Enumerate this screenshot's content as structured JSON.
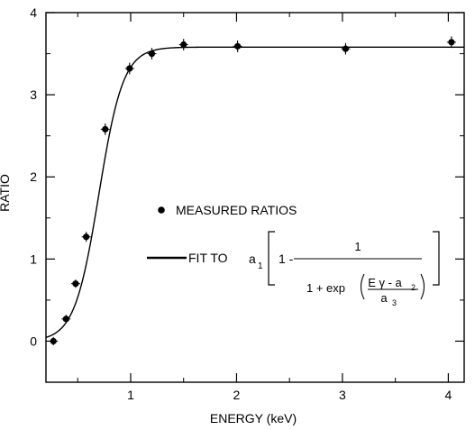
{
  "chart_data": {
    "type": "scatter",
    "xlabel": "ENERGY  (keV)",
    "ylabel": "RATIO",
    "xlim": [
      0.2,
      4.15
    ],
    "ylim": [
      -0.5,
      4
    ],
    "grid": false,
    "x_ticks": [
      1,
      2,
      3,
      4
    ],
    "y_ticks": [
      0,
      1,
      2,
      3,
      4
    ],
    "series": [
      {
        "name": "MEASURED RATIOS",
        "kind": "points",
        "x": [
          0.27,
          0.39,
          0.48,
          0.58,
          0.76,
          0.99,
          1.2,
          1.5,
          2.01,
          3.03,
          4.03
        ],
        "y": [
          0.0,
          0.27,
          0.7,
          1.27,
          2.58,
          3.32,
          3.5,
          3.61,
          3.59,
          3.56,
          3.64
        ],
        "yerr": [
          0.05,
          0.05,
          0.05,
          0.06,
          0.07,
          0.07,
          0.07,
          0.07,
          0.07,
          0.07,
          0.07
        ]
      },
      {
        "name": "FIT TO",
        "kind": "line",
        "formula": "a1 [ 1 - 1 / (1 + exp((Eγ - a2)/a3)) ]",
        "params": {
          "a1": 3.58,
          "a2": 0.7,
          "a3": 0.115
        }
      }
    ]
  }
}
